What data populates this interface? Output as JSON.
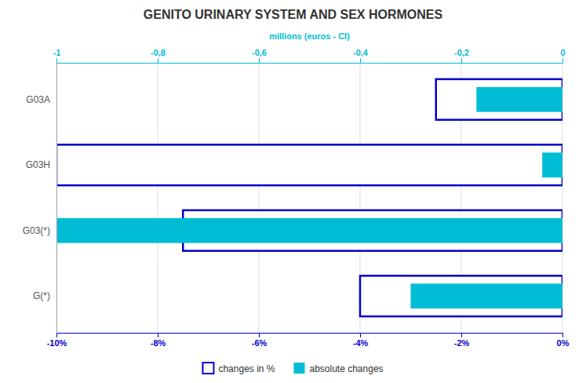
{
  "chart_data": {
    "type": "bar",
    "orientation": "horizontal",
    "title": "GENITO URINARY SYSTEM AND SEX HORMONES",
    "categories": [
      "G03A",
      "G03H",
      "G03(*)",
      "G(*)"
    ],
    "series": [
      {
        "name": "changes in %",
        "color": "#0000cc",
        "values": [
          -2.5,
          -10.0,
          -7.5,
          -4.0
        ]
      },
      {
        "name": "absolute changes",
        "color": "#00bcd4",
        "axis": "x2",
        "values": [
          -0.17,
          -0.04,
          -1.0,
          -0.3
        ]
      }
    ],
    "xlim": [
      -10,
      0
    ],
    "xticks": [
      {
        "value": -10,
        "label": "-10%"
      },
      {
        "value": -8,
        "label": "-8%"
      },
      {
        "value": -6,
        "label": "-6%"
      },
      {
        "value": -4,
        "label": "-4%"
      },
      {
        "value": -2,
        "label": "-2%"
      },
      {
        "value": 0,
        "label": "0%"
      }
    ],
    "x2lim": [
      -1,
      0
    ],
    "x2ticks": [
      -1,
      {
        "value": -0.8,
        "label": "-0,8"
      },
      {
        "value": -0.6,
        "label": "-0,6"
      },
      {
        "value": -0.4,
        "label": "-0,4"
      },
      {
        "value": -0.2,
        "label": "-0,2"
      },
      0
    ],
    "x2_label": "millions (euros - CI)",
    "grid": true,
    "legend": "bottom"
  }
}
